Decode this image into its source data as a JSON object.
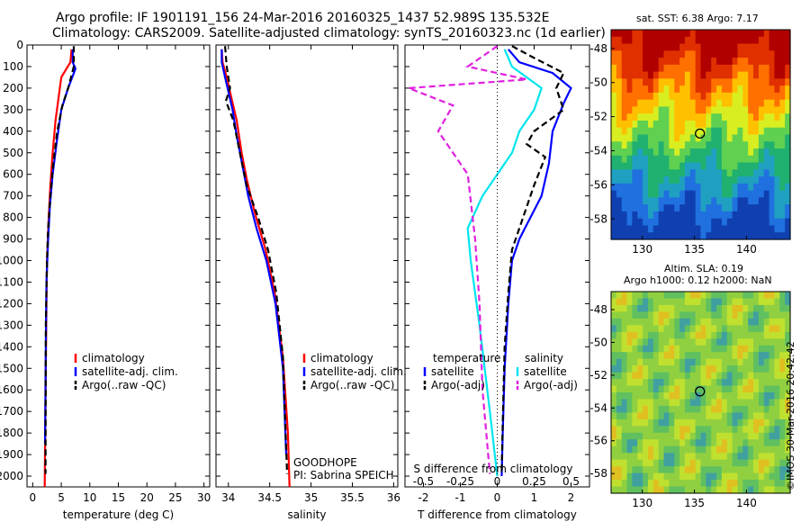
{
  "title": {
    "line1": "Argo profile: IF 1901191_156 24-Mar-2016 20160325_1437 52.989S 135.532E",
    "line2": "Climatology: CARS2009. Satellite-adjusted climatology: synTS_20160323.nc (1d earlier)"
  },
  "colors": {
    "clim": "#ff0000",
    "sat": "#0000ff",
    "argo": "#000000",
    "sat_s": "#00e5ee",
    "argo_s": "#e020e0"
  },
  "credit": "©IMOS 30-Mar-2016 20:42:42",
  "chart_data": [
    {
      "type": "line",
      "panel": "temperature",
      "xlabel": "temperature (deg C)",
      "xlim": [
        -1,
        31
      ],
      "xticks": [
        0,
        5,
        10,
        15,
        20,
        25,
        30
      ],
      "ylim": [
        0,
        2050
      ],
      "yticks": [
        0,
        100,
        200,
        300,
        400,
        500,
        600,
        700,
        800,
        900,
        1000,
        1100,
        1200,
        1300,
        1400,
        1500,
        1600,
        1700,
        1800,
        1900,
        2000
      ],
      "grid": false,
      "legend": [
        "climatology",
        "satellite-adj. clim.",
        "Argo(..raw -QC)"
      ],
      "series": [
        {
          "name": "climatology",
          "color": "#ff0000",
          "style": "solid",
          "x": [
            6.8,
            6.6,
            5.0,
            4.5,
            4.0,
            3.5,
            3.1,
            2.8,
            2.5,
            2.4,
            2.3,
            2.2,
            2.15,
            2.1
          ],
          "y": [
            20,
            80,
            150,
            250,
            350,
            500,
            650,
            800,
            1000,
            1200,
            1500,
            1800,
            1900,
            2050
          ]
        },
        {
          "name": "satellite-adj. clim.",
          "color": "#0000ff",
          "style": "solid",
          "x": [
            7.0,
            7.0,
            7.5,
            6.2,
            5.0,
            4.2,
            3.5,
            3.0,
            2.7,
            2.4,
            2.3,
            2.2,
            2.15
          ],
          "y": [
            20,
            80,
            110,
            200,
            300,
            450,
            600,
            750,
            900,
            1100,
            1400,
            1700,
            1850
          ]
        },
        {
          "name": "Argo(..raw -QC)",
          "color": "#000000",
          "style": "dashed",
          "x": [
            7.2,
            7.2,
            6.2,
            5.2,
            4.3,
            3.6,
            3.1,
            2.7,
            2.5,
            2.3,
            2.25
          ],
          "y": [
            5,
            100,
            200,
            280,
            400,
            550,
            700,
            850,
            1000,
            1300,
            1990
          ]
        }
      ]
    },
    {
      "type": "line",
      "panel": "salinity",
      "xlabel": "salinity",
      "xlim": [
        33.85,
        36.05
      ],
      "xticks": [
        34,
        34.5,
        35,
        35.5,
        36
      ],
      "xticklabels": [
        "34",
        "34.5",
        "35",
        "35.5",
        "36"
      ],
      "ylim": [
        0,
        2050
      ],
      "grid": false,
      "legend": [
        "climatology",
        "satellite-adj. clim.",
        "Argo(..raw -QC)"
      ],
      "annotation": [
        "GOODHOPE",
        "PI: Sabrina SPEICH"
      ],
      "series": [
        {
          "name": "climatology",
          "color": "#ff0000",
          "style": "solid",
          "x": [
            33.92,
            33.93,
            33.98,
            34.04,
            34.1,
            34.16,
            34.22,
            34.32,
            34.45,
            34.56,
            34.66,
            34.72,
            34.74
          ],
          "y": [
            20,
            80,
            150,
            250,
            350,
            500,
            620,
            780,
            950,
            1150,
            1450,
            1800,
            2050
          ]
        },
        {
          "name": "satellite-adj. clim.",
          "color": "#0000ff",
          "style": "solid",
          "x": [
            33.92,
            33.92,
            33.96,
            34.05,
            34.1,
            34.17,
            34.24,
            34.34,
            34.46,
            34.57,
            34.66,
            34.7
          ],
          "y": [
            20,
            80,
            150,
            300,
            420,
            560,
            700,
            850,
            1000,
            1200,
            1500,
            1900
          ]
        },
        {
          "name": "Argo(..raw -QC)",
          "color": "#000000",
          "style": "dashed",
          "x": [
            33.96,
            33.98,
            34.02,
            33.97,
            34.06,
            34.14,
            34.22,
            34.36,
            34.48,
            34.58,
            34.66,
            34.71
          ],
          "y": [
            5,
            100,
            200,
            260,
            350,
            500,
            650,
            800,
            950,
            1150,
            1450,
            1990
          ]
        }
      ]
    },
    {
      "type": "line",
      "panel": "difference",
      "xlabel": "T difference from climatology",
      "xlim": [
        -2.5,
        2.5
      ],
      "xticks": [
        -2,
        -1,
        0,
        1,
        2
      ],
      "top_xlabel": "S difference from climatology",
      "top_xticks": [
        -0.5,
        -0.25,
        0,
        0.25,
        0.5
      ],
      "top_xticklabels": [
        "-0.5",
        "-0.25",
        "0",
        "0.25",
        "0.5"
      ],
      "ylim": [
        0,
        2050
      ],
      "grid": false,
      "legend": {
        "temperature": [
          "temperature",
          "satellite",
          "Argo(-adj)"
        ],
        "salinity": [
          "salinity",
          "satellite",
          "Argo(-adj)"
        ]
      },
      "series": [
        {
          "name": "T satellite",
          "color": "#0000ff",
          "style": "solid",
          "x": [
            0.3,
            0.6,
            1.5,
            2.0,
            1.8,
            1.5,
            1.4,
            1.2,
            0.9,
            0.6,
            0.4,
            0.3,
            0.2,
            0.15,
            0.12
          ],
          "y": [
            20,
            80,
            130,
            200,
            270,
            400,
            550,
            700,
            800,
            900,
            1000,
            1200,
            1500,
            1800,
            2000
          ]
        },
        {
          "name": "T Argo(-adj)",
          "color": "#000000",
          "style": "dashed",
          "x": [
            0.4,
            1.0,
            1.8,
            1.6,
            1.8,
            1.0,
            0.8,
            1.3,
            1.0,
            0.7,
            0.4,
            0.3,
            0.2,
            0.15,
            0.12
          ],
          "y": [
            5,
            60,
            130,
            200,
            300,
            400,
            460,
            520,
            650,
            800,
            950,
            1150,
            1400,
            1750,
            1990
          ]
        },
        {
          "name": "S satellite",
          "color": "#00e5ee",
          "style": "solid",
          "x": [
            0.05,
            0.1,
            0.3,
            0.25,
            0.15,
            0.1,
            0.0,
            -0.1,
            -0.2,
            -0.18,
            -0.12,
            -0.05,
            0.0
          ],
          "y": [
            20,
            100,
            200,
            300,
            400,
            500,
            600,
            700,
            850,
            1000,
            1300,
            1700,
            2000
          ]
        },
        {
          "name": "S Argo(-adj)",
          "color": "#e020e0",
          "style": "dashed",
          "x": [
            0.0,
            -0.2,
            0.2,
            -0.6,
            -0.3,
            -0.4,
            -0.2,
            -0.15,
            -0.12,
            -0.1,
            -0.05
          ],
          "y": [
            5,
            100,
            160,
            200,
            280,
            400,
            600,
            900,
            1200,
            1600,
            1990
          ]
        }
      ]
    }
  ],
  "maps": {
    "sst": {
      "title": "sat. SST: 6.38 Argo: 7.17",
      "xticks": [
        "130",
        "135",
        "140"
      ],
      "yticks": [
        "-48",
        "-50",
        "-52",
        "-54",
        "-56",
        "-58"
      ],
      "profile_marker": {
        "lon": 135.532,
        "lat": -52.989
      }
    },
    "sla": {
      "title_line1": "Altim. SLA: 0.19",
      "title_line2": "Argo h1000: 0.12 h2000: NaN",
      "xticks": [
        "130",
        "135",
        "140"
      ],
      "yticks": [
        "-48",
        "-50",
        "-52",
        "-54",
        "-56",
        "-58"
      ],
      "profile_marker": {
        "lon": 135.532,
        "lat": -52.989
      }
    }
  }
}
